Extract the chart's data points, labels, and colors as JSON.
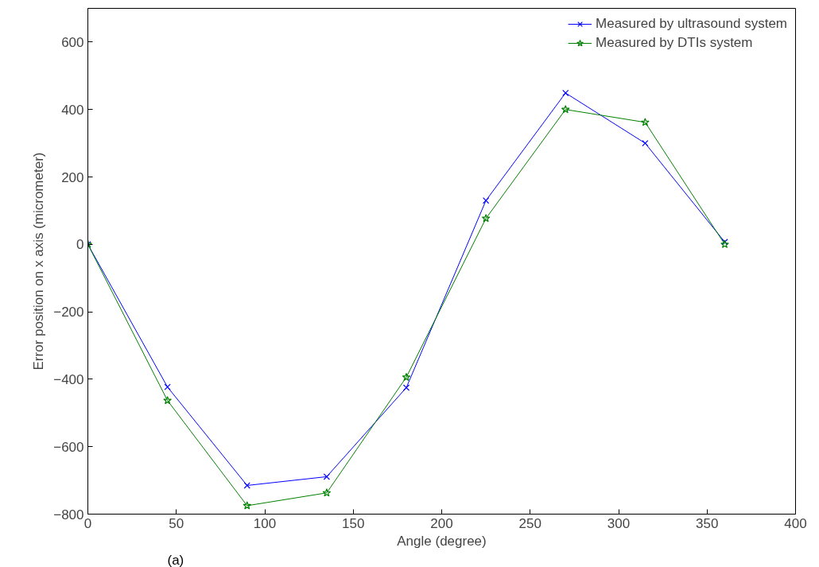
{
  "chart_data": {
    "type": "line",
    "xlabel": "Angle (degree)",
    "ylabel": "Error position on x axis (micrometer)",
    "x": [
      0,
      45,
      90,
      135,
      180,
      225,
      270,
      315,
      360
    ],
    "series": [
      {
        "name": "Measured by ultrasound system",
        "color": "#0000ff",
        "marker": "cross",
        "values": [
          0,
          -423,
          -715,
          -689,
          -425,
          130,
          449,
          300,
          7
        ]
      },
      {
        "name": "Measured by DTIs system",
        "color": "#008000",
        "marker": "star",
        "values": [
          0,
          -463,
          -775,
          -737,
          -394,
          77,
          400,
          362,
          0
        ]
      }
    ],
    "xlim": [
      0,
      400
    ],
    "xticks": [
      0,
      50,
      100,
      150,
      200,
      250,
      300,
      350,
      400
    ],
    "ylim": [
      -800,
      700
    ],
    "yticks": [
      -800,
      -600,
      -400,
      -200,
      0,
      200,
      400,
      600
    ],
    "grid": false,
    "legend": "top right",
    "line_style": "solid",
    "annotations": [
      "(a)"
    ]
  }
}
